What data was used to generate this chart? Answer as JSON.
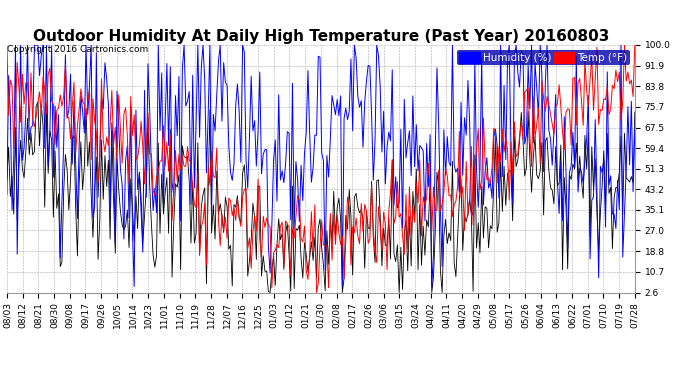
{
  "title": "Outdoor Humidity At Daily High Temperature (Past Year) 20160803",
  "copyright": "Copyright 2016 Cartronics.com",
  "legend_humidity": "Humidity (%)",
  "legend_temp": "Temp (°F)",
  "yticks": [
    2.6,
    10.7,
    18.8,
    27.0,
    35.1,
    43.2,
    51.3,
    59.4,
    67.5,
    75.7,
    83.8,
    91.9,
    100.0
  ],
  "ylim": [
    2.6,
    100.0
  ],
  "xtick_labels": [
    "08/03",
    "08/12",
    "08/21",
    "08/30",
    "09/08",
    "09/17",
    "09/26",
    "10/05",
    "10/14",
    "10/23",
    "11/01",
    "11/10",
    "11/19",
    "11/28",
    "12/07",
    "12/16",
    "12/25",
    "01/03",
    "01/12",
    "01/21",
    "01/30",
    "02/08",
    "02/17",
    "02/26",
    "03/06",
    "03/15",
    "03/24",
    "04/02",
    "04/11",
    "04/20",
    "04/29",
    "05/08",
    "05/17",
    "05/26",
    "06/04",
    "06/13",
    "06/22",
    "07/01",
    "07/10",
    "07/19",
    "07/28"
  ],
  "xtick_years": [
    "0",
    "0",
    "0",
    "0",
    "0",
    "0",
    "0",
    "0",
    "0",
    "0",
    "0",
    "0",
    "0",
    "0",
    "0",
    "0",
    "0",
    "1",
    "1",
    "1",
    "1",
    "0",
    "0",
    "0",
    "0",
    "0",
    "0",
    "0",
    "0",
    "0",
    "0",
    "0",
    "0",
    "0",
    "0",
    "0",
    "0",
    "0",
    "0",
    "0",
    "0"
  ],
  "bg_color": "#ffffff",
  "grid_color": "#aaaaaa",
  "humidity_color": "#0000ff",
  "temp_color": "#ff0000",
  "black_color": "#000000",
  "title_fontsize": 11,
  "tick_fontsize": 6.5,
  "legend_fontsize": 7.5,
  "copyright_fontsize": 6.5,
  "figsize": [
    6.9,
    3.75
  ],
  "dpi": 100
}
